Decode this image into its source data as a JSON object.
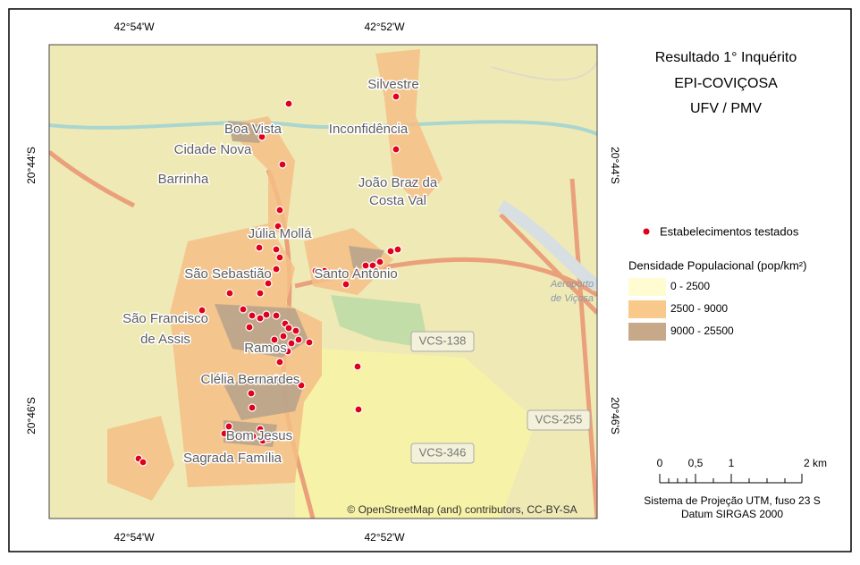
{
  "graticule": {
    "top": [
      "42°54'W",
      "42°52'W"
    ],
    "bottom": [
      "42°54'W",
      "42°52'W"
    ],
    "left": [
      "20°44'S",
      "20°46'S"
    ],
    "right": [
      "20°44'S",
      "20°46'S"
    ]
  },
  "map": {
    "places": [
      "Silvestre",
      "Boa Vista",
      "Inconfidência",
      "Cidade Nova",
      "Barrinha",
      "João Braz da",
      "Costa Val",
      "Júlia Mollá",
      "São Sebastião",
      "Santo Antônio",
      "São Francisco",
      "de Assis",
      "Ramos",
      "Clélia Bernardes",
      "Bom Jesus",
      "Sagrada Família"
    ],
    "roads": [
      "VCS-138",
      "VCS-255",
      "VCS-346"
    ],
    "airport": [
      "Aeroporto",
      "de Viçosa"
    ],
    "attribution": "© OpenStreetMap (and) contributors, CC-BY-SA"
  },
  "title": [
    "Resultado 1° Inquérito",
    "EPI-COVIÇOSA",
    "UFV / PMV"
  ],
  "legend": {
    "points": "Estabelecimentos testados",
    "density_title": "Densidade Populacional (pop/km²)",
    "classes": [
      {
        "label": "0 - 2500",
        "color": "#fefcd0"
      },
      {
        "label": "2500 - 9000",
        "color": "#f8c98a"
      },
      {
        "label": "9000 - 25500",
        "color": "#c7a888"
      }
    ]
  },
  "scale": {
    "labels": [
      "0",
      "0,5",
      "1",
      "2 km"
    ]
  },
  "projection": [
    "Sistema de Projeção UTM, fuso 23 S",
    "Datum SIRGAS 2000"
  ]
}
